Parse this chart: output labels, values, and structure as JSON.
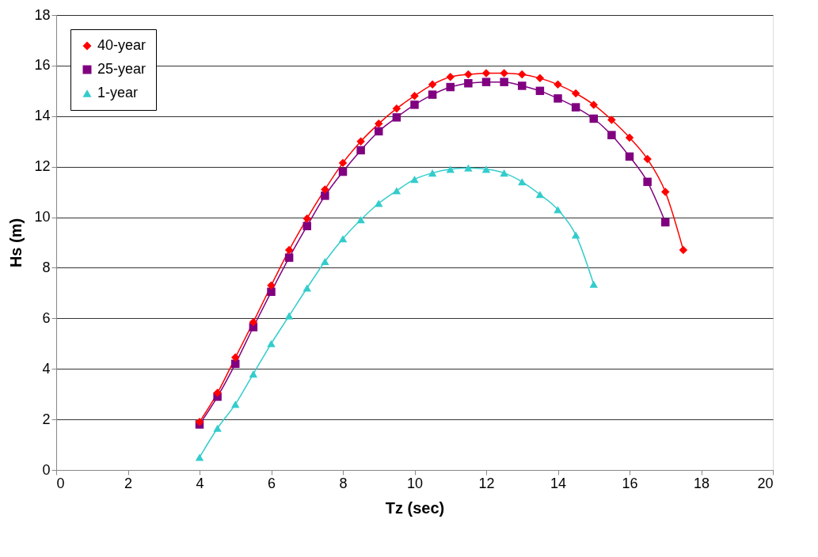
{
  "chart_data": {
    "type": "line",
    "xlabel": "Tz (sec)",
    "ylabel": "Hs (m)",
    "xlim": [
      0,
      20
    ],
    "xticks": [
      0,
      2,
      4,
      6,
      8,
      10,
      12,
      14,
      16,
      18,
      20
    ],
    "ylim": [
      0,
      18
    ],
    "yticks": [
      0,
      2,
      4,
      6,
      8,
      10,
      12,
      14,
      16,
      18
    ],
    "grid": "y",
    "legend": "top left",
    "line_style": "solid",
    "series": [
      {
        "name": "40-year",
        "color": "#ff0000",
        "marker": "diamond",
        "x": [
          4,
          4.5,
          5,
          5.5,
          6,
          6.5,
          7,
          7.5,
          8,
          8.5,
          9,
          9.5,
          10,
          10.5,
          11,
          11.5,
          12,
          12.5,
          13,
          13.5,
          14,
          14.5,
          15,
          15.5,
          16,
          16.5,
          17,
          17.5
        ],
        "values": [
          1.9,
          3.05,
          4.45,
          5.85,
          7.3,
          8.7,
          9.95,
          11.1,
          12.15,
          13.0,
          13.7,
          14.3,
          14.8,
          15.25,
          15.55,
          15.65,
          15.7,
          15.7,
          15.65,
          15.5,
          15.25,
          14.9,
          14.45,
          13.85,
          13.15,
          12.3,
          11.0,
          8.7
        ]
      },
      {
        "name": "25-year",
        "color": "#800080",
        "marker": "square",
        "x": [
          4,
          4.5,
          5,
          5.5,
          6,
          6.5,
          7,
          7.5,
          8,
          8.5,
          9,
          9.5,
          10,
          10.5,
          11,
          11.5,
          12,
          12.5,
          13,
          13.5,
          14,
          14.5,
          15,
          15.5,
          16,
          16.5,
          17
        ],
        "values": [
          1.8,
          2.9,
          4.2,
          5.65,
          7.05,
          8.4,
          9.65,
          10.85,
          11.8,
          12.65,
          13.4,
          13.95,
          14.45,
          14.85,
          15.15,
          15.3,
          15.35,
          15.35,
          15.2,
          15.0,
          14.7,
          14.35,
          13.9,
          13.25,
          12.4,
          11.4,
          9.8
        ]
      },
      {
        "name": "1-year",
        "color": "#33cccc",
        "marker": "triangle",
        "x": [
          4,
          4.5,
          5,
          5.5,
          6,
          6.5,
          7,
          7.5,
          8,
          8.5,
          9,
          9.5,
          10,
          10.5,
          11,
          11.5,
          12,
          12.5,
          13,
          13.5,
          14,
          14.5,
          15
        ],
        "values": [
          0.5,
          1.65,
          2.6,
          3.8,
          5.0,
          6.1,
          7.2,
          8.25,
          9.15,
          9.9,
          10.55,
          11.05,
          11.5,
          11.75,
          11.9,
          11.95,
          11.9,
          11.75,
          11.4,
          10.9,
          10.3,
          9.3,
          7.35
        ]
      }
    ]
  }
}
